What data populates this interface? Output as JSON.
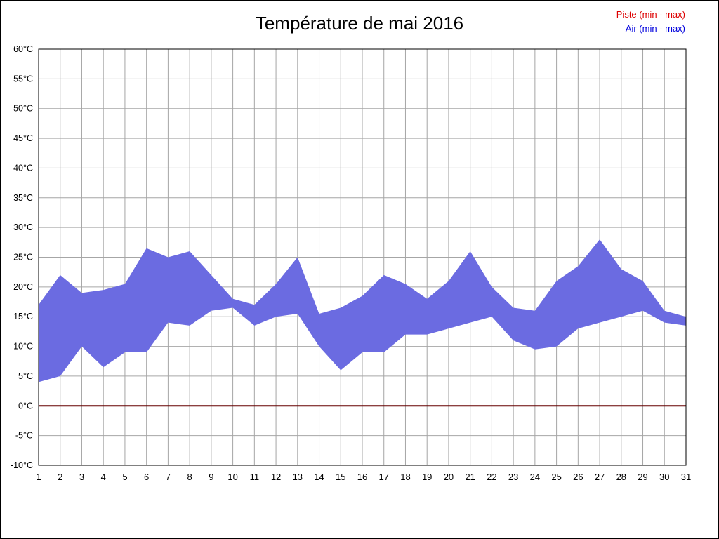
{
  "legend": {
    "position": "top-right",
    "items": [
      {
        "label": "Piste (min - max)",
        "color": "#dd0000"
      },
      {
        "label": "Air (min - max)",
        "color": "#0000dd"
      }
    ]
  },
  "chart_data": {
    "type": "area",
    "title": "Température de mai 2016",
    "xlabel": "",
    "ylabel": "°C",
    "x": [
      1,
      2,
      3,
      4,
      5,
      6,
      7,
      8,
      9,
      10,
      11,
      12,
      13,
      14,
      15,
      16,
      17,
      18,
      19,
      20,
      21,
      22,
      23,
      24,
      25,
      26,
      27,
      28,
      29,
      30,
      31
    ],
    "xtick_labels": [
      "1",
      "2",
      "3",
      "4",
      "5",
      "6",
      "7",
      "8",
      "9",
      "10",
      "11",
      "12",
      "13",
      "14",
      "15",
      "16",
      "17",
      "18",
      "19",
      "20",
      "21",
      "22",
      "23",
      "24",
      "25",
      "26",
      "27",
      "28",
      "29",
      "30",
      "31"
    ],
    "ylim": [
      -10,
      60
    ],
    "ytick_step": 5,
    "ytick_labels": [
      "-10°C",
      "-5°C",
      "0°C",
      "5°C",
      "10°C",
      "15°C",
      "20°C",
      "25°C",
      "30°C",
      "35°C",
      "40°C",
      "45°C",
      "50°C",
      "55°C",
      "60°C"
    ],
    "grid": true,
    "grid_color": "#a6a6a6",
    "plot_border_color": "#000000",
    "legend_position": "top-right",
    "series": [
      {
        "name": "Air max",
        "color": "#6b6be1",
        "values": [
          17,
          22,
          19,
          19.5,
          20.5,
          26.5,
          25,
          26,
          22,
          18,
          17,
          20.5,
          25,
          15.5,
          16.5,
          18.5,
          22,
          20.5,
          18,
          21,
          26,
          20,
          16.5,
          16,
          21,
          23.5,
          28,
          23,
          21,
          16,
          15
        ]
      },
      {
        "name": "Air min",
        "color": "#6b6be1",
        "values": [
          4,
          5,
          10,
          6.5,
          9,
          9,
          14,
          13.5,
          16,
          16.5,
          13.5,
          15,
          15.5,
          10,
          6,
          9,
          9,
          12,
          12,
          13,
          14,
          15,
          11,
          9.5,
          10,
          13,
          14,
          15,
          16,
          14,
          13.5
        ]
      },
      {
        "name": "Piste (min - max)",
        "color": "#660000",
        "values": [
          0,
          0,
          0,
          0,
          0,
          0,
          0,
          0,
          0,
          0,
          0,
          0,
          0,
          0,
          0,
          0,
          0,
          0,
          0,
          0,
          0,
          0,
          0,
          0,
          0,
          0,
          0,
          0,
          0,
          0,
          0
        ]
      }
    ]
  }
}
